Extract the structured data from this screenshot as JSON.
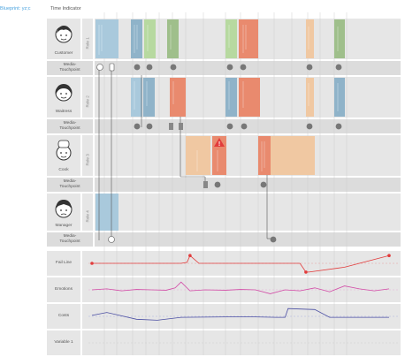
{
  "header": {
    "blueprint_label": "Blueprint: yz;c",
    "time_label": "Time Indicator"
  },
  "roles": [
    {
      "name": "Customer",
      "role_tag": "Role 1",
      "media": "Media-\nTouchpoint"
    },
    {
      "name": "Waitress",
      "role_tag": "Role 2",
      "media": "Media-\nTouchpoint"
    },
    {
      "name": "Cook",
      "role_tag": "Role 3",
      "media": "Media-\nTouchpoint"
    },
    {
      "name": "Manager",
      "role_tag": "Role 4",
      "media": "Media-\nTouchpoint"
    }
  ],
  "metrics": [
    {
      "name": "Fail Line"
    },
    {
      "name": "Emotions"
    },
    {
      "name": "Costs"
    },
    {
      "name": "Variable 1"
    }
  ],
  "colors": {
    "blue": "#a9c9dc",
    "blue_dark": "#8fb3c9",
    "green": "#b7d9a0",
    "green_dark": "#9fbf8b",
    "orange": "#f0c8a2",
    "red": "#e98a6e",
    "fail_line": "#e23b3b",
    "emotions": "#d24aa6",
    "costs": "#4b4fa3"
  },
  "chart_data": [
    {
      "type": "line",
      "name": "Fail Line",
      "x": [
        0,
        0.3,
        0.32,
        0.33,
        0.36,
        0.7,
        0.72,
        0.73,
        0.85,
        1
      ],
      "values": [
        0.5,
        0.5,
        0.55,
        0.9,
        0.5,
        0.5,
        0.05,
        0.05,
        0.3,
        0.9
      ]
    },
    {
      "type": "line",
      "name": "Emotions",
      "x": [
        0,
        0.05,
        0.1,
        0.15,
        0.2,
        0.25,
        0.28,
        0.3,
        0.33,
        0.38,
        0.45,
        0.5,
        0.55,
        0.6,
        0.65,
        0.7,
        0.75,
        0.8,
        0.85,
        0.9,
        0.95,
        1
      ],
      "values": [
        0.5,
        0.55,
        0.45,
        0.52,
        0.5,
        0.48,
        0.6,
        0.9,
        0.45,
        0.5,
        0.48,
        0.52,
        0.5,
        0.3,
        0.5,
        0.45,
        0.6,
        0.4,
        0.7,
        0.55,
        0.45,
        0.55
      ]
    },
    {
      "type": "line",
      "name": "Costs",
      "x": [
        0,
        0.05,
        0.15,
        0.22,
        0.3,
        0.45,
        0.55,
        0.62,
        0.65,
        0.66,
        0.75,
        0.8,
        1
      ],
      "values": [
        0.55,
        0.7,
        0.35,
        0.3,
        0.45,
        0.47,
        0.47,
        0.45,
        0.45,
        0.9,
        0.85,
        0.45,
        0.45
      ]
    }
  ]
}
